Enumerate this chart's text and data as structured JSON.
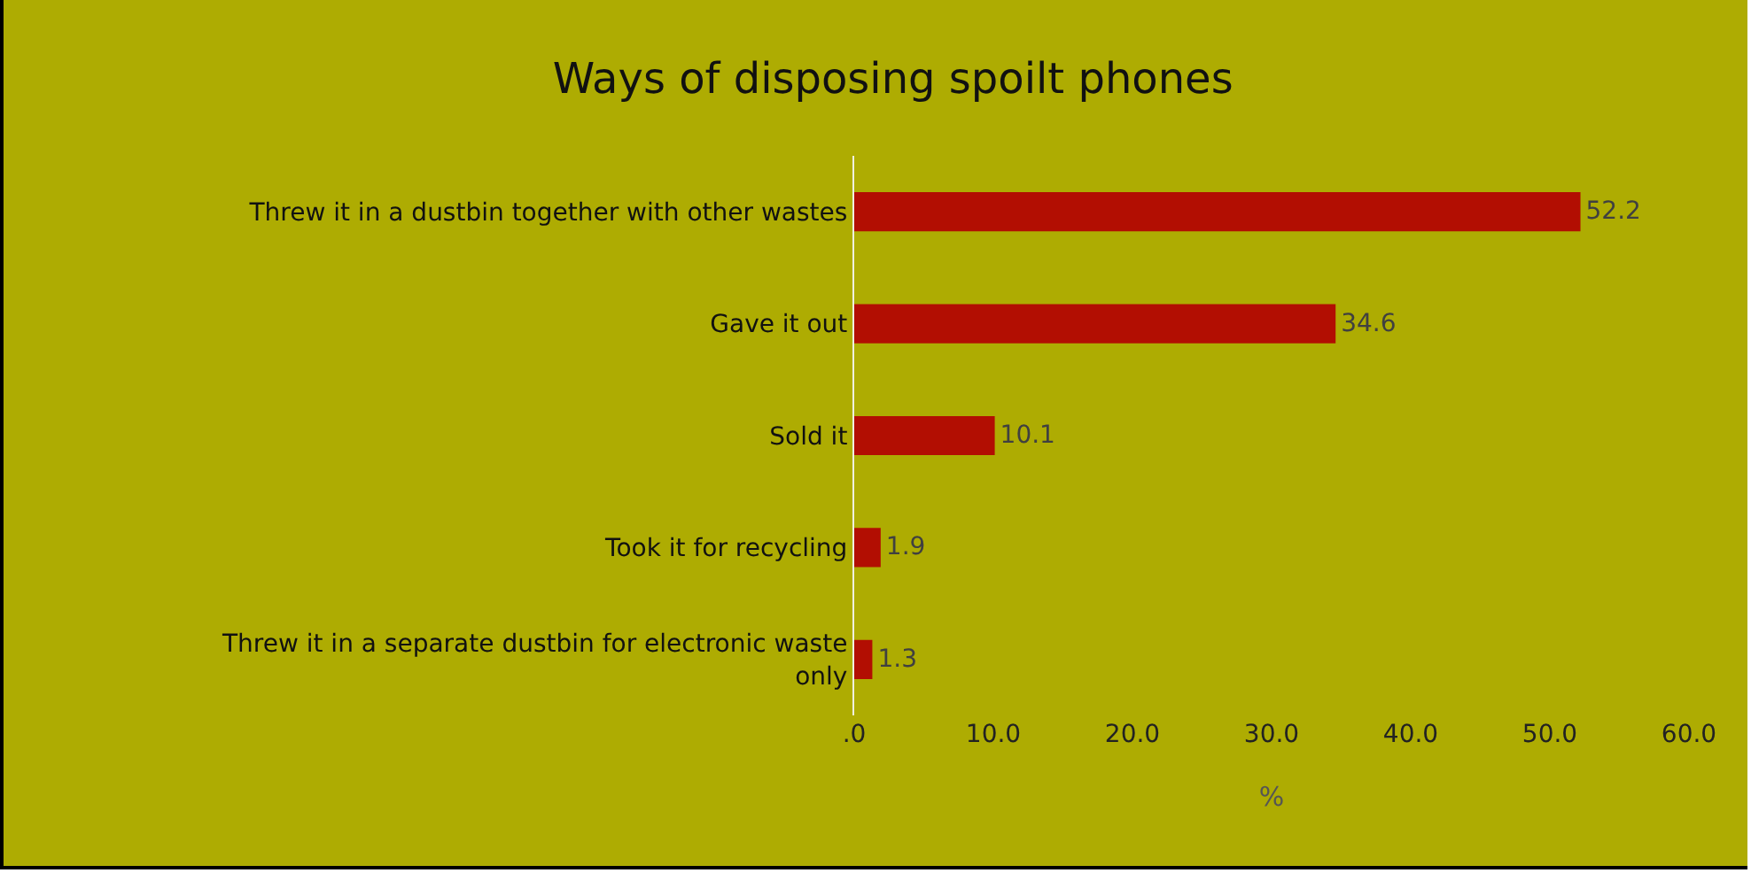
{
  "chart_data": {
    "type": "bar",
    "orientation": "horizontal",
    "title": "Ways of disposing spoilt phones",
    "xlabel": "%",
    "categories": [
      "Threw it in a dustbin together with other wastes",
      "Gave it out",
      "Sold it",
      "Took it for recycling",
      "Threw it in a separate dustbin for electronic waste only"
    ],
    "values": [
      52.2,
      34.6,
      10.1,
      1.9,
      1.3
    ],
    "color": "#b20e02",
    "xlim": [
      0,
      60
    ],
    "xticks": [
      {
        "value": 0,
        "label": ".0"
      },
      {
        "value": 10,
        "label": "10.0"
      },
      {
        "value": 20,
        "label": "20.0"
      },
      {
        "value": 30,
        "label": "30.0"
      },
      {
        "value": 40,
        "label": "40.0"
      },
      {
        "value": 50,
        "label": "50.0"
      },
      {
        "value": 60,
        "label": "60.0"
      }
    ],
    "data_labels": true,
    "grid": false
  }
}
